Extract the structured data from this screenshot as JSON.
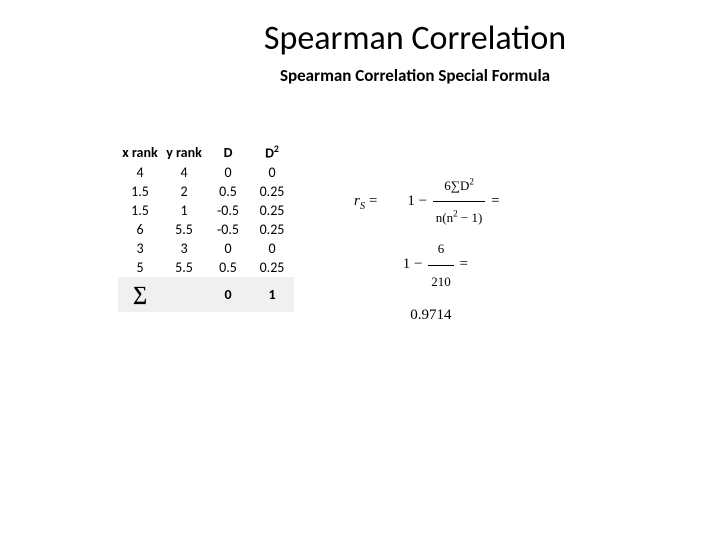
{
  "title": "Spearman Correlation",
  "subtitle": "Spearman Correlation Special Formula",
  "table": {
    "headers": {
      "h0": "x rank",
      "h1": "y rank",
      "h2": "D",
      "h3": "D",
      "h3sup": "2"
    },
    "rows": [
      {
        "c0": "4",
        "c1": "4",
        "c2": "0",
        "c3": "0"
      },
      {
        "c0": "1.5",
        "c1": "2",
        "c2": "0.5",
        "c3": "0.25"
      },
      {
        "c0": "1.5",
        "c1": "1",
        "c2": "-0.5",
        "c3": "0.25"
      },
      {
        "c0": "6",
        "c1": "5.5",
        "c2": "-0.5",
        "c3": "0.25"
      },
      {
        "c0": "3",
        "c1": "3",
        "c2": "0",
        "c3": "0"
      },
      {
        "c0": "5",
        "c1": "5.5",
        "c2": "0.5",
        "c3": "0.25"
      }
    ],
    "sum": {
      "sym": "∑",
      "d": "0",
      "d2": "1"
    }
  },
  "formula": {
    "lhs_var": "r",
    "lhs_sub": "S",
    "eq": "=",
    "one": "1",
    "minus": "−",
    "num1_a": "6∑D",
    "num1_sup": "2",
    "den1_a": "n(n",
    "den1_sup": "2",
    "den1_b": " − 1)",
    "num2": "6",
    "den2": "210",
    "result": "0.9714"
  },
  "style": {
    "background": "#ffffff",
    "text_color": "#000000",
    "sum_row_bg": "#f0f0f0",
    "title_fontsize": 34,
    "subtitle_fontsize": 17,
    "table_fontsize": 14,
    "formula_fontsize": 15
  }
}
